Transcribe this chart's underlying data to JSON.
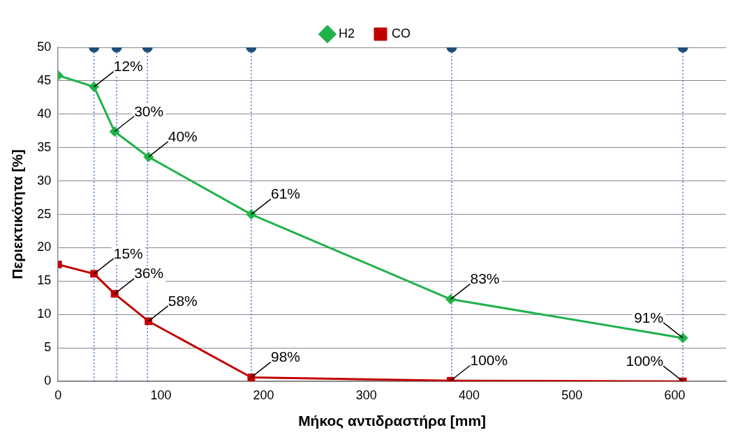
{
  "chart_data": {
    "type": "line",
    "xlabel": "Μήκος αντιδραστήρα [mm]",
    "ylabel": "Περιεκτικότητα [%]",
    "xlim": [
      0,
      650
    ],
    "xticks": [
      0,
      100,
      200,
      300,
      400,
      500,
      600
    ],
    "ylim": [
      0,
      50
    ],
    "yticks": [
      0,
      5,
      10,
      15,
      20,
      25,
      30,
      35,
      40,
      45,
      50
    ],
    "grid": "y",
    "legend": "top",
    "line_style": "solid",
    "series": [
      {
        "name": "H2",
        "color": "#1fb24a",
        "marker": "diamond",
        "x": [
          0,
          35,
          55,
          88,
          188,
          382,
          608
        ],
        "values": [
          45.8,
          44.1,
          37.4,
          33.6,
          25.0,
          12.3,
          6.5
        ]
      },
      {
        "name": "CO",
        "color": "#c00000",
        "marker": "square",
        "x": [
          0,
          35,
          55,
          88,
          188,
          382,
          608
        ],
        "values": [
          17.5,
          16.1,
          13.1,
          9.0,
          0.6,
          0.1,
          0
        ]
      },
      {
        "type": "scatter",
        "color": "#1f4e79",
        "marker": "circle",
        "x": [
          35,
          57,
          87,
          188,
          383,
          608
        ],
        "values": [
          50,
          50,
          50,
          50,
          50,
          50
        ]
      }
    ],
    "ref_lines": [
      {
        "axis": "x",
        "value": 35,
        "color": "#4472c4",
        "line_style": "dotted"
      },
      {
        "axis": "x",
        "value": 57,
        "color": "#4472c4",
        "line_style": "dotted"
      },
      {
        "axis": "x",
        "value": 87,
        "color": "#4472c4",
        "line_style": "dotted"
      },
      {
        "axis": "x",
        "value": 188,
        "color": "#4472c4",
        "line_style": "dotted"
      },
      {
        "axis": "x",
        "value": 383,
        "color": "#4472c4",
        "line_style": "dotted"
      },
      {
        "axis": "x",
        "value": 608,
        "color": "#4472c4",
        "line_style": "dotted"
      }
    ],
    "annotations": [
      {
        "text": "12%",
        "x": 35,
        "y": 44.1
      },
      {
        "text": "30%",
        "x": 55,
        "y": 37.4
      },
      {
        "text": "40%",
        "x": 88,
        "y": 33.6
      },
      {
        "text": "61%",
        "x": 188,
        "y": 25.0
      },
      {
        "text": "83%",
        "x": 382,
        "y": 12.3
      },
      {
        "text": "91%",
        "x": 608,
        "y": 6.5
      },
      {
        "text": "15%",
        "x": 35,
        "y": 16.1
      },
      {
        "text": "36%",
        "x": 55,
        "y": 13.1
      },
      {
        "text": "58%",
        "x": 88,
        "y": 9.0
      },
      {
        "text": "98%",
        "x": 188,
        "y": 0.6
      },
      {
        "text": "100%",
        "x": 382,
        "y": 0.1
      },
      {
        "text": "100%",
        "x": 608,
        "y": 0
      }
    ]
  }
}
